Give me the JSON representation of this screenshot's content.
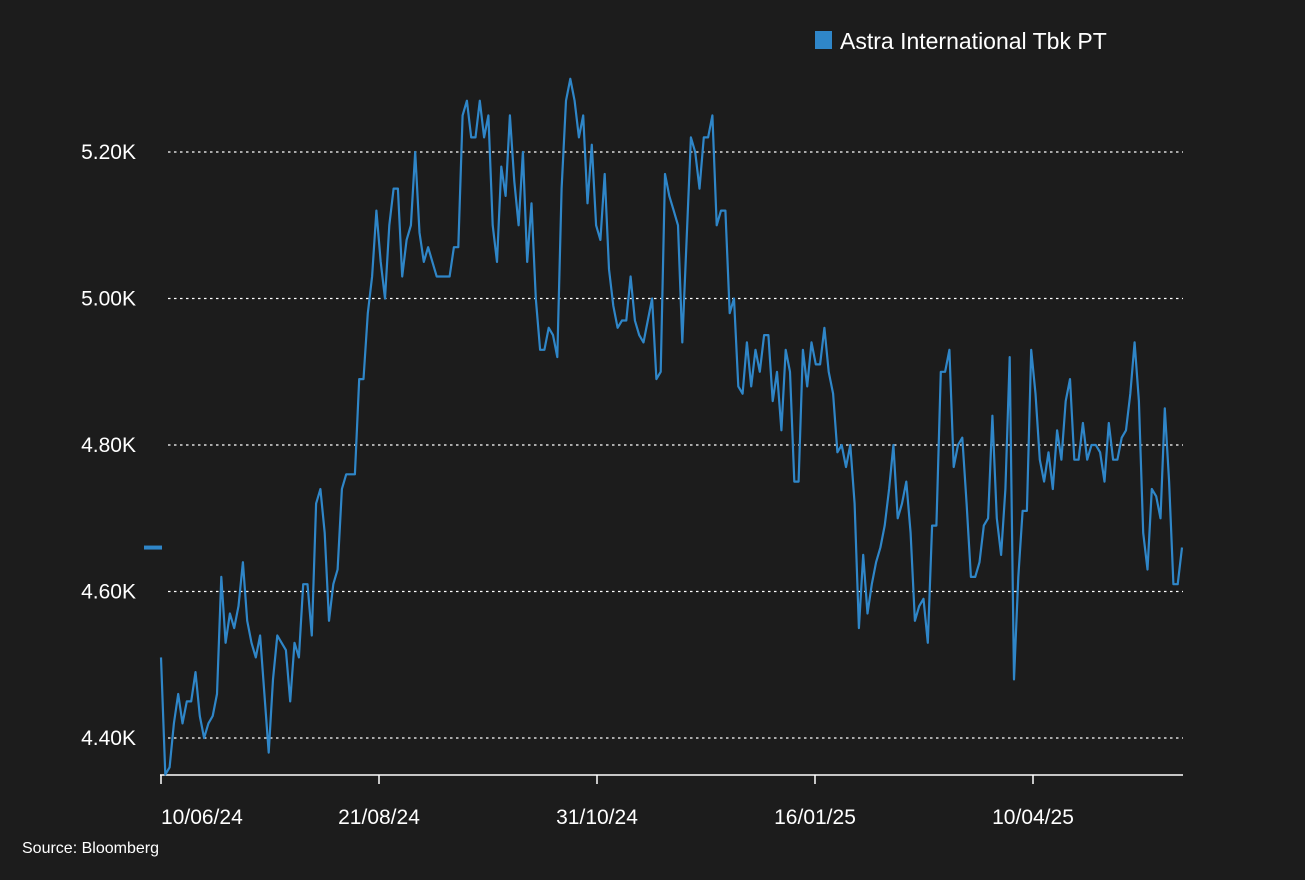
{
  "chart_data": {
    "type": "line",
    "series": [
      {
        "name": "Astra International Tbk PT",
        "color": "#2f86c8",
        "values": [
          4510,
          4350,
          4360,
          4420,
          4460,
          4420,
          4450,
          4450,
          4490,
          4430,
          4400,
          4420,
          4430,
          4460,
          4620,
          4530,
          4570,
          4550,
          4580,
          4640,
          4560,
          4530,
          4510,
          4540,
          4460,
          4380,
          4480,
          4540,
          4530,
          4520,
          4450,
          4530,
          4510,
          4610,
          4610,
          4540,
          4720,
          4740,
          4680,
          4560,
          4610,
          4630,
          4740,
          4760,
          4760,
          4760,
          4890,
          4890,
          4980,
          5030,
          5120,
          5050,
          5000,
          5100,
          5150,
          5150,
          5030,
          5080,
          5100,
          5200,
          5090,
          5050,
          5070,
          5050,
          5030,
          5030,
          5030,
          5030,
          5070,
          5070,
          5250,
          5270,
          5220,
          5220,
          5270,
          5220,
          5250,
          5100,
          5050,
          5180,
          5140,
          5250,
          5160,
          5100,
          5200,
          5050,
          5130,
          5000,
          4930,
          4930,
          4960,
          4950,
          4920,
          5150,
          5270,
          5300,
          5270,
          5220,
          5250,
          5130,
          5210,
          5100,
          5080,
          5170,
          5040,
          4990,
          4960,
          4970,
          4970,
          5030,
          4970,
          4950,
          4940,
          4970,
          5000,
          4890,
          4900,
          5170,
          5140,
          5120,
          5100,
          4940,
          5080,
          5220,
          5200,
          5150,
          5220,
          5220,
          5250,
          5100,
          5120,
          5120,
          4980,
          5000,
          4880,
          4870,
          4940,
          4880,
          4930,
          4900,
          4950,
          4950,
          4860,
          4900,
          4820,
          4930,
          4900,
          4750,
          4750,
          4930,
          4880,
          4940,
          4910,
          4910,
          4960,
          4900,
          4870,
          4790,
          4800,
          4770,
          4800,
          4720,
          4550,
          4650,
          4570,
          4610,
          4640,
          4660,
          4690,
          4740,
          4800,
          4700,
          4720,
          4750,
          4680,
          4560,
          4580,
          4590,
          4530,
          4690,
          4690,
          4900,
          4900,
          4930,
          4770,
          4800,
          4810,
          4720,
          4620,
          4620,
          4640,
          4690,
          4700,
          4840,
          4700,
          4650,
          4740,
          4920,
          4480,
          4620,
          4710,
          4710,
          4930,
          4870,
          4780,
          4750,
          4790,
          4740,
          4820,
          4780,
          4860,
          4890,
          4780,
          4780,
          4830,
          4780,
          4800,
          4800,
          4790,
          4750,
          4830,
          4780,
          4780,
          4810,
          4820,
          4870,
          4940,
          4860,
          4680,
          4630,
          4740,
          4730,
          4700,
          4850,
          4750,
          4610,
          4610,
          4660
        ]
      }
    ],
    "x_ticks": [
      "10/06/24",
      "21/08/24",
      "31/10/24",
      "16/01/25",
      "10/04/25"
    ],
    "y_ticks": [
      {
        "value": 4400,
        "label": "4.40K"
      },
      {
        "value": 4600,
        "label": "4.60K"
      },
      {
        "value": 4800,
        "label": "4.80K"
      },
      {
        "value": 5000,
        "label": "5.00K"
      },
      {
        "value": 5200,
        "label": "5.20K"
      }
    ],
    "ylim": [
      4350,
      5330
    ],
    "grid": "horizontal-dotted",
    "legend_position": "top-right",
    "last_value_marker": 4660,
    "source": "Source: Bloomberg",
    "background": "#1c1c1c",
    "text_color": "#ffffff"
  }
}
